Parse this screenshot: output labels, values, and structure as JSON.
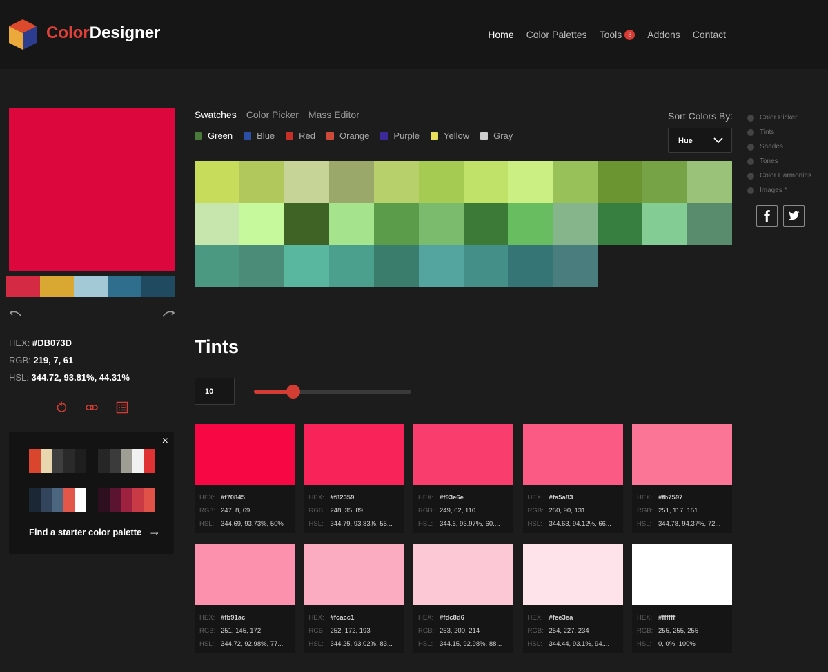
{
  "header": {
    "brand_part1": "Color",
    "brand_part2": "Designer",
    "nav": [
      {
        "label": "Home",
        "active": true
      },
      {
        "label": "Color Palettes"
      },
      {
        "label": "Tools",
        "badge": "8"
      },
      {
        "label": "Addons"
      },
      {
        "label": "Contact"
      }
    ]
  },
  "current": {
    "color": "#DB073D",
    "hex_label": "HEX:",
    "hex": "#DB073D",
    "rgb_label": "RGB:",
    "rgb": "219, 7, 61",
    "hsl_label": "HSL:",
    "hsl": "344.72, 93.81%, 44.31%",
    "palette": [
      "#d42a44",
      "#d9a833",
      "#a3c9d6",
      "#2f6e8c",
      "#1f4a60"
    ]
  },
  "starter": {
    "close": "×",
    "find_label": "Find a starter color palette",
    "arrow": "→",
    "palettes": [
      [
        "#d9452d",
        "#e8d6ae",
        "#3e3e3e",
        "#2a2a2a",
        "#1e1e1e"
      ],
      [
        "#262626",
        "#3b3b3b",
        "#9e9e94",
        "#f1f1f1",
        "#e03232"
      ],
      [
        "#1c2736",
        "#33455c",
        "#4c6680",
        "#e3574a",
        "#ffffff"
      ],
      [
        "#2d0f20",
        "#5a1430",
        "#9e2240",
        "#c83a45",
        "#e05247"
      ]
    ]
  },
  "tabs": [
    {
      "label": "Swatches",
      "active": true
    },
    {
      "label": "Color Picker"
    },
    {
      "label": "Mass Editor"
    }
  ],
  "filters": [
    {
      "label": "Green",
      "color": "#4a7a3a",
      "active": true
    },
    {
      "label": "Blue",
      "color": "#2b4fa6"
    },
    {
      "label": "Red",
      "color": "#c62f27"
    },
    {
      "label": "Orange",
      "color": "#cc4a37"
    },
    {
      "label": "Purple",
      "color": "#3a2a9c"
    },
    {
      "label": "Yellow",
      "color": "#e8e05a"
    },
    {
      "label": "Gray",
      "color": "#cfcfcf"
    }
  ],
  "sort": {
    "label": "Sort Colors By:",
    "value": "Hue"
  },
  "swatch_rows": [
    [
      "#c8dc5c",
      "#b1c95c",
      "#c6d597",
      "#9aa96a",
      "#b7d06c",
      "#a5cb52",
      "#c0e268",
      "#cbef83",
      "#99c15a",
      "#6b9531",
      "#76a345",
      "#9ac278"
    ],
    [
      "#c7e6ad",
      "#c6f99b",
      "#3f6325",
      "#a6e38d",
      "#5a9c49",
      "#7abb6d",
      "#3c7a38",
      "#68bd60",
      "#86b58c",
      "#367f41",
      "#83cc93",
      "#588c6c"
    ],
    [
      "#4b9980",
      "#4a8c77",
      "#59b79f",
      "#4aa08c",
      "#3a7d6d",
      "#54a49f",
      "#449088",
      "#367576",
      "#4a7d7d"
    ]
  ],
  "side_menu": [
    "Color Picker",
    "Tints",
    "Shades",
    "Tones",
    "Color Harmonies",
    "Images *"
  ],
  "social": {
    "facebook": "f",
    "twitter": "twitter"
  },
  "tints": {
    "title": "Tints",
    "count": "10",
    "slider_fraction": 0.25,
    "labels": {
      "hex": "HEX:",
      "rgb": "RGB:",
      "hsl": "HSL:"
    },
    "cards": [
      {
        "color": "#f70845",
        "hex": "#f70845",
        "rgb": "247, 8, 69",
        "hsl": "344.69, 93.73%, 50%"
      },
      {
        "color": "#f82359",
        "hex": "#f82359",
        "rgb": "248, 35, 89",
        "hsl": "344.79, 93.83%, 55..."
      },
      {
        "color": "#f93e6e",
        "hex": "#f93e6e",
        "rgb": "249, 62, 110",
        "hsl": "344.6, 93.97%, 60...."
      },
      {
        "color": "#fa5a83",
        "hex": "#fa5a83",
        "rgb": "250, 90, 131",
        "hsl": "344.63, 94.12%, 66..."
      },
      {
        "color": "#fb7597",
        "hex": "#fb7597",
        "rgb": "251, 117, 151",
        "hsl": "344.78, 94.37%, 72..."
      },
      {
        "color": "#fb91ac",
        "hex": "#fb91ac",
        "rgb": "251, 145, 172",
        "hsl": "344.72, 92.98%, 77..."
      },
      {
        "color": "#fcacc1",
        "hex": "#fcacc1",
        "rgb": "252, 172, 193",
        "hsl": "344.25, 93.02%, 83..."
      },
      {
        "color": "#fdc8d6",
        "hex": "#fdc8d6",
        "rgb": "253, 200, 214",
        "hsl": "344.15, 92.98%, 88..."
      },
      {
        "color": "#fee3ea",
        "hex": "#fee3ea",
        "rgb": "254, 227, 234",
        "hsl": "344.44, 93.1%, 94...."
      },
      {
        "color": "#ffffff",
        "hex": "#ffffff",
        "rgb": "255, 255, 255",
        "hsl": "0, 0%, 100%"
      }
    ]
  }
}
